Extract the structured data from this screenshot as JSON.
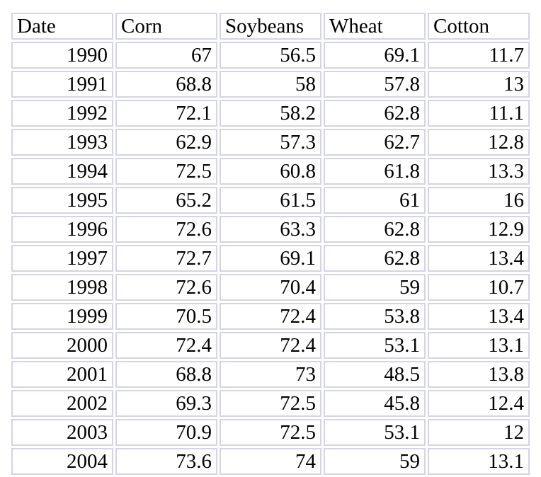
{
  "table": {
    "columns": [
      "Date",
      "Corn",
      "Soybeans",
      "Wheat",
      "Cotton"
    ],
    "rows": [
      [
        "1990",
        "67",
        "56.5",
        "69.1",
        "11.7"
      ],
      [
        "1991",
        "68.8",
        "58",
        "57.8",
        "13"
      ],
      [
        "1992",
        "72.1",
        "58.2",
        "62.8",
        "11.1"
      ],
      [
        "1993",
        "62.9",
        "57.3",
        "62.7",
        "12.8"
      ],
      [
        "1994",
        "72.5",
        "60.8",
        "61.8",
        "13.3"
      ],
      [
        "1995",
        "65.2",
        "61.5",
        "61",
        "16"
      ],
      [
        "1996",
        "72.6",
        "63.3",
        "62.8",
        "12.9"
      ],
      [
        "1997",
        "72.7",
        "69.1",
        "62.8",
        "13.4"
      ],
      [
        "1998",
        "72.6",
        "70.4",
        "59",
        "10.7"
      ],
      [
        "1999",
        "70.5",
        "72.4",
        "53.8",
        "13.4"
      ],
      [
        "2000",
        "72.4",
        "72.4",
        "53.1",
        "13.1"
      ],
      [
        "2001",
        "68.8",
        "73",
        "48.5",
        "13.8"
      ],
      [
        "2002",
        "69.3",
        "72.5",
        "45.8",
        "12.4"
      ],
      [
        "2003",
        "70.9",
        "72.5",
        "53.1",
        "12"
      ],
      [
        "2004",
        "73.6",
        "74",
        "59",
        "13.1"
      ]
    ]
  },
  "chart_data": {
    "type": "table",
    "columns": [
      "Date",
      "Corn",
      "Soybeans",
      "Wheat",
      "Cotton"
    ],
    "x": [
      1990,
      1991,
      1992,
      1993,
      1994,
      1995,
      1996,
      1997,
      1998,
      1999,
      2000,
      2001,
      2002,
      2003,
      2004
    ],
    "series": [
      {
        "name": "Corn",
        "values": [
          67,
          68.8,
          72.1,
          62.9,
          72.5,
          65.2,
          72.6,
          72.7,
          72.6,
          70.5,
          72.4,
          68.8,
          69.3,
          70.9,
          73.6
        ]
      },
      {
        "name": "Soybeans",
        "values": [
          56.5,
          58,
          58.2,
          57.3,
          60.8,
          61.5,
          63.3,
          69.1,
          70.4,
          72.4,
          72.4,
          73,
          72.5,
          72.5,
          74
        ]
      },
      {
        "name": "Wheat",
        "values": [
          69.1,
          57.8,
          62.8,
          62.7,
          61.8,
          61,
          62.8,
          62.8,
          59,
          53.8,
          53.1,
          48.5,
          45.8,
          53.1,
          59
        ]
      },
      {
        "name": "Cotton",
        "values": [
          11.7,
          13,
          11.1,
          12.8,
          13.3,
          16,
          12.9,
          13.4,
          10.7,
          13.4,
          13.1,
          13.8,
          12.4,
          12,
          13.1
        ]
      }
    ]
  }
}
